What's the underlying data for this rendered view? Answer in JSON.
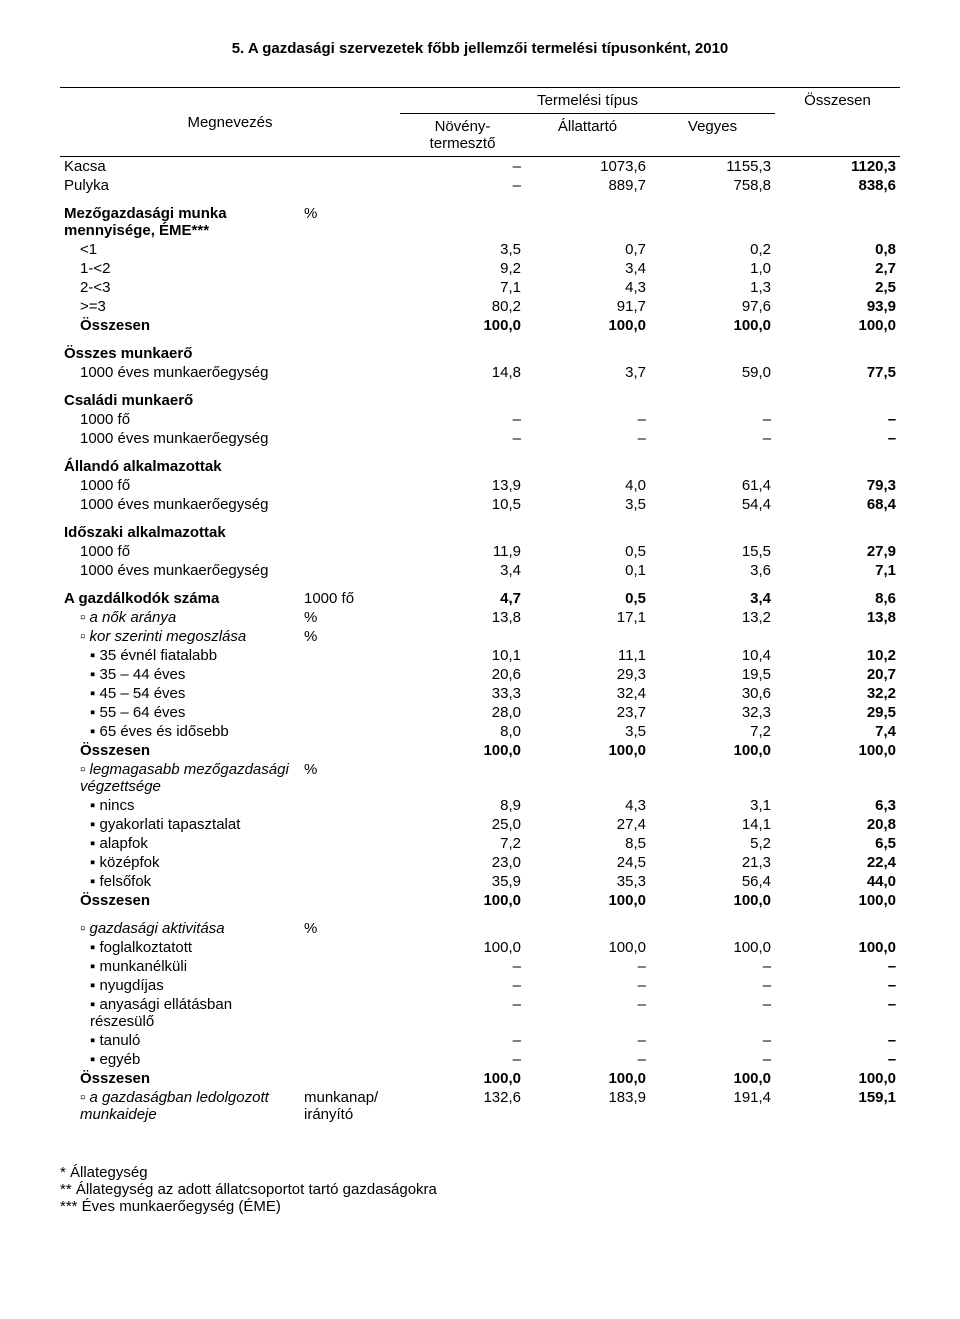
{
  "title": "5. A gazdasági szervezetek főbb jellemzői termelési típusonként, 2010",
  "header": {
    "megnevezes": "Megnevezés",
    "termelesi_tipus": "Termelési típus",
    "cols": [
      "Növény-\ntermesztő",
      "Állattartó",
      "Vegyes"
    ],
    "osszesen": "Összesen"
  },
  "rows": [
    {
      "label": "Kacsa",
      "unit": "",
      "vals": [
        "–",
        "1073,6",
        "1155,3"
      ],
      "tot": "1120,3",
      "boldTot": true
    },
    {
      "label": "Pulyka",
      "unit": "",
      "vals": [
        "–",
        "889,7",
        "758,8"
      ],
      "tot": "838,6",
      "boldTot": true
    },
    {
      "label": "Mezőgazdasági munka mennyisége, ÉME***",
      "unit": "%",
      "section": true,
      "bold": true
    },
    {
      "label": "<1",
      "ind": 1,
      "vals": [
        "3,5",
        "0,7",
        "0,2"
      ],
      "tot": "0,8",
      "boldTot": true
    },
    {
      "label": "1-<2",
      "ind": 1,
      "vals": [
        "9,2",
        "3,4",
        "1,0"
      ],
      "tot": "2,7",
      "boldTot": true
    },
    {
      "label": "2-<3",
      "ind": 1,
      "vals": [
        "7,1",
        "4,3",
        "1,3"
      ],
      "tot": "2,5",
      "boldTot": true
    },
    {
      "label": ">=3",
      "ind": 1,
      "vals": [
        "80,2",
        "91,7",
        "97,6"
      ],
      "tot": "93,9",
      "boldTot": true
    },
    {
      "label": "Összesen",
      "ind": 1,
      "bold": true,
      "vals": [
        "100,0",
        "100,0",
        "100,0"
      ],
      "tot": "100,0",
      "boldTot": true
    },
    {
      "label": "Összes munkaerő",
      "section": true,
      "bold": true
    },
    {
      "label": "1000 éves munkaerőegység",
      "ind": 1,
      "vals": [
        "14,8",
        "3,7",
        "59,0"
      ],
      "tot": "77,5",
      "boldTot": true
    },
    {
      "label": "Családi munkaerő",
      "section": true,
      "bold": true
    },
    {
      "label": "1000 fő",
      "ind": 1,
      "vals": [
        "–",
        "–",
        "–"
      ],
      "tot": "–",
      "boldTot": true
    },
    {
      "label": "1000 éves munkaerőegység",
      "ind": 1,
      "vals": [
        "–",
        "–",
        "–"
      ],
      "tot": "–",
      "boldTot": true
    },
    {
      "label": "Állandó alkalmazottak",
      "section": true,
      "bold": true
    },
    {
      "label": "1000 fő",
      "ind": 1,
      "vals": [
        "13,9",
        "4,0",
        "61,4"
      ],
      "tot": "79,3",
      "boldTot": true
    },
    {
      "label": "1000 éves munkaerőegység",
      "ind": 1,
      "vals": [
        "10,5",
        "3,5",
        "54,4"
      ],
      "tot": "68,4",
      "boldTot": true
    },
    {
      "label": "Időszaki alkalmazottak",
      "section": true,
      "bold": true
    },
    {
      "label": "1000 fő",
      "ind": 1,
      "vals": [
        "11,9",
        "0,5",
        "15,5"
      ],
      "tot": "27,9",
      "boldTot": true
    },
    {
      "label": "1000 éves munkaerőegység",
      "ind": 1,
      "vals": [
        "3,4",
        "0,1",
        "3,6"
      ],
      "tot": "7,1",
      "boldTot": true
    },
    {
      "label": "A gazdálkodók száma",
      "unit": "1000 fő",
      "section": true,
      "bold": true,
      "vals": [
        "4,7",
        "0,5",
        "3,4"
      ],
      "tot": "8,6",
      "boldTot": true
    },
    {
      "label": "▫ a nők aránya",
      "unit": "%",
      "ind": 1,
      "italic": true,
      "vals": [
        "13,8",
        "17,1",
        "13,2"
      ],
      "tot": "13,8",
      "boldTot": true
    },
    {
      "label": "▫ kor szerinti megoszlása",
      "unit": "%",
      "ind": 1,
      "italic": true
    },
    {
      "label": "▪ 35 évnél fiatalabb",
      "ind": 2,
      "vals": [
        "10,1",
        "11,1",
        "10,4"
      ],
      "tot": "10,2",
      "boldTot": true
    },
    {
      "label": "▪ 35 – 44 éves",
      "ind": 2,
      "vals": [
        "20,6",
        "29,3",
        "19,5"
      ],
      "tot": "20,7",
      "boldTot": true
    },
    {
      "label": "▪ 45 – 54 éves",
      "ind": 2,
      "vals": [
        "33,3",
        "32,4",
        "30,6"
      ],
      "tot": "32,2",
      "boldTot": true
    },
    {
      "label": "▪ 55 – 64 éves",
      "ind": 2,
      "vals": [
        "28,0",
        "23,7",
        "32,3"
      ],
      "tot": "29,5",
      "boldTot": true
    },
    {
      "label": "▪ 65 éves és idősebb",
      "ind": 2,
      "vals": [
        "8,0",
        "3,5",
        "7,2"
      ],
      "tot": "7,4",
      "boldTot": true
    },
    {
      "label": "Összesen",
      "ind": 1,
      "bold": true,
      "vals": [
        "100,0",
        "100,0",
        "100,0"
      ],
      "tot": "100,0",
      "boldTot": true
    },
    {
      "label": "▫ legmagasabb mezőgazdasági végzettsége",
      "unit": "%",
      "ind": 1,
      "italic": true
    },
    {
      "label": "▪ nincs",
      "ind": 2,
      "vals": [
        "8,9",
        "4,3",
        "3,1"
      ],
      "tot": "6,3",
      "boldTot": true
    },
    {
      "label": "▪ gyakorlati tapasztalat",
      "ind": 2,
      "vals": [
        "25,0",
        "27,4",
        "14,1"
      ],
      "tot": "20,8",
      "boldTot": true
    },
    {
      "label": "▪ alapfok",
      "ind": 2,
      "vals": [
        "7,2",
        "8,5",
        "5,2"
      ],
      "tot": "6,5",
      "boldTot": true
    },
    {
      "label": "▪ középfok",
      "ind": 2,
      "vals": [
        "23,0",
        "24,5",
        "21,3"
      ],
      "tot": "22,4",
      "boldTot": true
    },
    {
      "label": "▪ felsőfok",
      "ind": 2,
      "vals": [
        "35,9",
        "35,3",
        "56,4"
      ],
      "tot": "44,0",
      "boldTot": true
    },
    {
      "label": "Összesen",
      "ind": 1,
      "bold": true,
      "vals": [
        "100,0",
        "100,0",
        "100,0"
      ],
      "tot": "100,0",
      "boldTot": true
    },
    {
      "label": "▫ gazdasági aktivitása",
      "unit": "%",
      "ind": 1,
      "italic": true,
      "section": true
    },
    {
      "label": "▪ foglalkoztatott",
      "ind": 2,
      "vals": [
        "100,0",
        "100,0",
        "100,0"
      ],
      "tot": "100,0",
      "boldTot": true
    },
    {
      "label": "▪ munkanélküli",
      "ind": 2,
      "vals": [
        "–",
        "–",
        "–"
      ],
      "tot": "–",
      "boldTot": true
    },
    {
      "label": "▪ nyugdíjas",
      "ind": 2,
      "vals": [
        "–",
        "–",
        "–"
      ],
      "tot": "–",
      "boldTot": true
    },
    {
      "label": "▪ anyasági ellátásban részesülő",
      "ind": 2,
      "vals": [
        "–",
        "–",
        "–"
      ],
      "tot": "–",
      "boldTot": true
    },
    {
      "label": "▪ tanuló",
      "ind": 2,
      "vals": [
        "–",
        "–",
        "–"
      ],
      "tot": "–",
      "boldTot": true
    },
    {
      "label": "▪ egyéb",
      "ind": 2,
      "vals": [
        "–",
        "–",
        "–"
      ],
      "tot": "–",
      "boldTot": true
    },
    {
      "label": "Összesen",
      "ind": 1,
      "bold": true,
      "vals": [
        "100,0",
        "100,0",
        "100,0"
      ],
      "tot": "100,0",
      "boldTot": true
    },
    {
      "label": "▫ a gazdaságban ledolgozott munkaideje",
      "unit": "munkanap/\nirányító",
      "ind": 1,
      "italic": true,
      "vals": [
        "132,6",
        "183,9",
        "191,4"
      ],
      "tot": "159,1",
      "boldTot": true
    }
  ],
  "footnotes": [
    "* Állategység",
    "** Állategység az adott állatcsoportot tartó gazdaságokra",
    "*** Éves munkaerőegység (ÉME)"
  ]
}
